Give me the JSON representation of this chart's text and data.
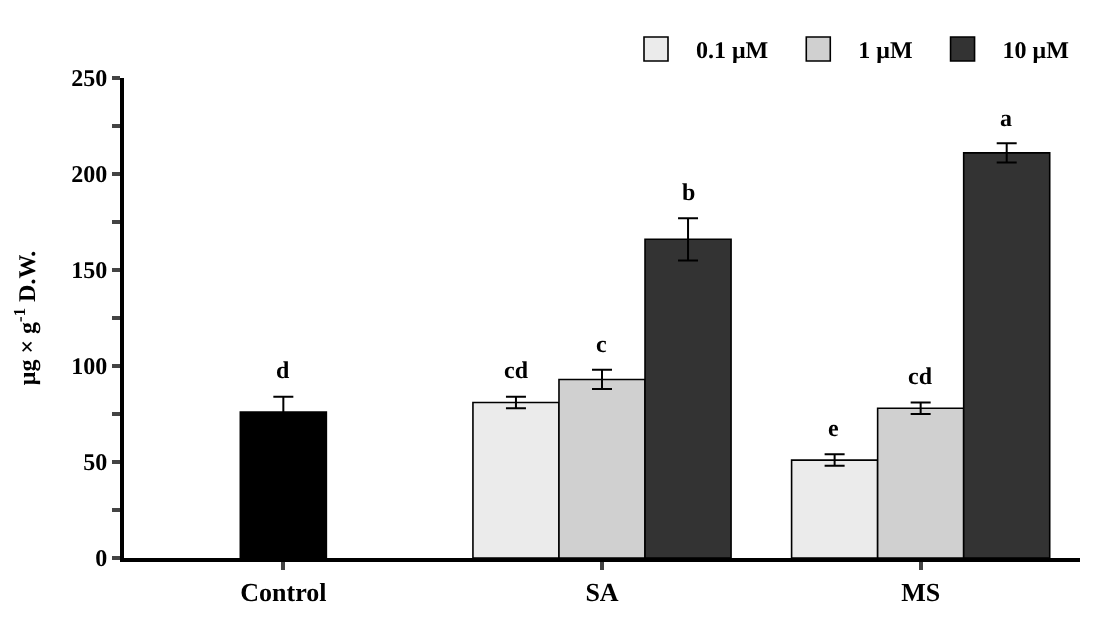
{
  "chart_data": {
    "type": "bar",
    "ylabel": "μg × g$^{-1}$ D.W.",
    "categories": [
      "Control",
      "SA",
      "MS"
    ],
    "series": [
      {
        "color": "#000000",
        "values": [
          76,
          null,
          null
        ],
        "errors": [
          8,
          null,
          null
        ],
        "value_labels": [
          "d",
          null,
          null
        ]
      },
      {
        "name": "0.1 μM",
        "color": "#ebebeb",
        "values": [
          null,
          81,
          51
        ],
        "errors": [
          null,
          3,
          3
        ],
        "value_labels": [
          null,
          "cd",
          "e"
        ]
      },
      {
        "name": "1 μM",
        "color": "#d0d0d0",
        "values": [
          null,
          93,
          78
        ],
        "errors": [
          null,
          5,
          3
        ],
        "value_labels": [
          null,
          "c",
          "cd"
        ]
      },
      {
        "name": "10 μM",
        "color": "#333333",
        "values": [
          null,
          166,
          211
        ],
        "errors": [
          null,
          11,
          5
        ],
        "value_labels": [
          null,
          "b",
          "a"
        ]
      }
    ],
    "ylim": [
      0,
      250
    ],
    "yticks": [
      0,
      {
        "value": 25,
        "label": null
      },
      50,
      {
        "value": 75,
        "label": null
      },
      100,
      {
        "value": 125,
        "label": null
      },
      150,
      {
        "value": 175,
        "label": null
      },
      200,
      {
        "value": 225,
        "label": null
      },
      250
    ],
    "legend": "top right"
  }
}
